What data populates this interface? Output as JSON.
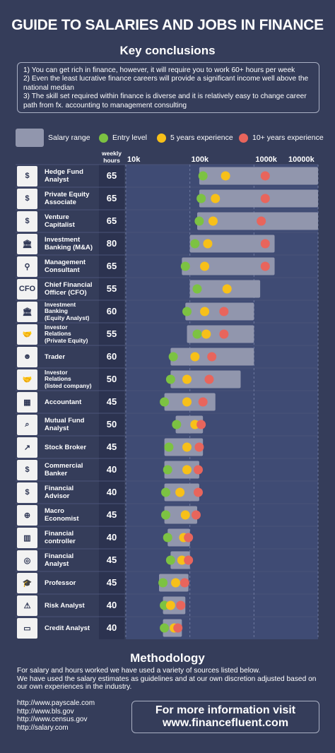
{
  "title": "GUIDE TO SALARIES AND JOBS IN FINANCE",
  "subtitle": "Key conclusions",
  "conclusions": [
    "1) You can get rich in finance, however, it will require you to work 60+ hours per week",
    "2) Even the least lucrative finance careers will provide a significant income well above the national median",
    "3) The skill set required within finance is diverse and it is relatively easy to change career path from fx. accounting to management consulting"
  ],
  "legend": {
    "salary_range": "Salary range",
    "entry": "Entry level",
    "five": "5 years experience",
    "ten": "10+ years experience"
  },
  "colors": {
    "background": "#353d5a",
    "plot_area": "#3f4b74",
    "bar": "#9196ad",
    "entry": "#7cc242",
    "five": "#f7c019",
    "ten": "#e8655c"
  },
  "hours_header": [
    "weekly",
    "hours"
  ],
  "chart_data": {
    "type": "range-dot",
    "x_scale": "log",
    "xlim": [
      10000,
      10000000
    ],
    "x_ticks": [
      {
        "value": 10000,
        "label": "10k"
      },
      {
        "value": 100000,
        "label": "100k"
      },
      {
        "value": 1000000,
        "label": "1000k"
      },
      {
        "value": 10000000,
        "label": "10000k"
      }
    ],
    "rows": [
      {
        "label": [
          "Hedge Fund",
          "Analyst"
        ],
        "icon": "money-bag-icon",
        "hours": 65,
        "range": [
          140000,
          10000000
        ],
        "entry": 160000,
        "five": 360000,
        "ten": 1500000
      },
      {
        "label": [
          "Private Equity",
          "Associate"
        ],
        "icon": "money-hand-icon",
        "hours": 65,
        "range": [
          140000,
          10000000
        ],
        "entry": 150000,
        "five": 250000,
        "ten": 1500000
      },
      {
        "label": [
          "Venture",
          "Capitalist"
        ],
        "icon": "money-wings-icon",
        "hours": 65,
        "range": [
          130000,
          10000000
        ],
        "entry": 140000,
        "five": 230000,
        "ten": 1300000
      },
      {
        "label": [
          "Investment",
          "Banking (M&A)"
        ],
        "icon": "bank-icon",
        "hours": 80,
        "range": [
          100000,
          2100000
        ],
        "entry": 120000,
        "five": 190000,
        "ten": 1500000
      },
      {
        "label": [
          "Management",
          "Consultant"
        ],
        "icon": "presenter-icon",
        "hours": 65,
        "range": [
          75000,
          2100000
        ],
        "entry": 85000,
        "five": 170000,
        "ten": 1500000
      },
      {
        "label": [
          "Chief Financial",
          "Officer (CFO)"
        ],
        "icon": "cfo-icon",
        "hours": 55,
        "range": [
          100000,
          1250000
        ],
        "entry": 130000,
        "five": 380000,
        "ten": null
      },
      {
        "label": [
          "Investment",
          "Banking",
          "(Equity Analyst)"
        ],
        "icon": "bank-icon",
        "hours": 60,
        "range": [
          85000,
          1000000
        ],
        "entry": 90000,
        "five": 170000,
        "ten": 340000
      },
      {
        "label": [
          "Investor",
          "Relations",
          "(Private Equity)"
        ],
        "icon": "handshake-private-icon",
        "hours": 55,
        "range": [
          90000,
          1000000
        ],
        "entry": 130000,
        "five": 180000,
        "ten": 340000
      },
      {
        "label": [
          "Trader"
        ],
        "icon": "trader-icon",
        "hours": 60,
        "range": [
          50000,
          1000000
        ],
        "entry": 55000,
        "five": 120000,
        "ten": 220000
      },
      {
        "label": [
          "Investor",
          "Relations",
          "(listed company)"
        ],
        "icon": "handshake-company-icon",
        "hours": 50,
        "range": [
          50000,
          620000
        ],
        "entry": 50000,
        "five": 90000,
        "ten": 200000
      },
      {
        "label": [
          "Accountant"
        ],
        "icon": "calculator-icon",
        "hours": 45,
        "range": [
          40000,
          250000
        ],
        "entry": 40000,
        "five": 90000,
        "ten": 160000
      },
      {
        "label": [
          "Mutual Fund",
          "Analyst"
        ],
        "icon": "magnifier-chart-icon",
        "hours": 50,
        "range": [
          60000,
          160000
        ],
        "entry": 62000,
        "five": 120000,
        "ten": 150000
      },
      {
        "label": [
          "Stock Broker"
        ],
        "icon": "stock-chart-icon",
        "hours": 45,
        "range": [
          40000,
          160000
        ],
        "entry": 47000,
        "five": 90000,
        "ten": 140000
      },
      {
        "label": [
          "Commercial",
          "Banker"
        ],
        "icon": "banker-icon",
        "hours": 40,
        "range": [
          40000,
          140000
        ],
        "entry": 45000,
        "five": 90000,
        "ten": 135000
      },
      {
        "label": [
          "Financial",
          "Advisor"
        ],
        "icon": "advisor-icon",
        "hours": 40,
        "range": [
          40000,
          140000
        ],
        "entry": 42000,
        "five": 70000,
        "ten": 135000
      },
      {
        "label": [
          "Macro",
          "Economist"
        ],
        "icon": "globe-icon",
        "hours": 45,
        "range": [
          40000,
          130000
        ],
        "entry": 42000,
        "five": 85000,
        "ten": 125000
      },
      {
        "label": [
          "Financial",
          "controller"
        ],
        "icon": "controller-icon",
        "hours": 40,
        "range": [
          45000,
          100000
        ],
        "entry": 45000,
        "five": 80000,
        "ten": 95000
      },
      {
        "label": [
          "Financial",
          "Analyst"
        ],
        "icon": "analyst-icon",
        "hours": 45,
        "range": [
          50000,
          100000
        ],
        "entry": 50000,
        "five": 75000,
        "ten": 95000
      },
      {
        "label": [
          "Professor"
        ],
        "icon": "graduate-icon",
        "hours": 45,
        "range": [
          33000,
          95000
        ],
        "entry": 38000,
        "five": 60000,
        "ten": 83000
      },
      {
        "label": [
          "Risk Analyst"
        ],
        "icon": "warning-icon",
        "hours": 40,
        "range": [
          38000,
          85000
        ],
        "entry": 40000,
        "five": 50000,
        "ten": 72000
      },
      {
        "label": [
          "Credit Analyst"
        ],
        "icon": "credit-card-icon",
        "hours": 40,
        "range": [
          38000,
          75000
        ],
        "entry": 40000,
        "five": 57000,
        "ten": 65000
      }
    ]
  },
  "methodology": {
    "title": "Methodology",
    "text": [
      "For salary and hours worked we have used a variety of sources listed below.",
      "We have used the salary estimates as guidelines and at our own discretion adjusted based on our own experiences in the industry."
    ],
    "links": [
      "http://www.payscale.com",
      "http://www.bls.gov",
      "http://www.census.gov",
      "http://salary.com"
    ],
    "cta": [
      "For more information visit",
      "www.financefluent.com"
    ]
  }
}
